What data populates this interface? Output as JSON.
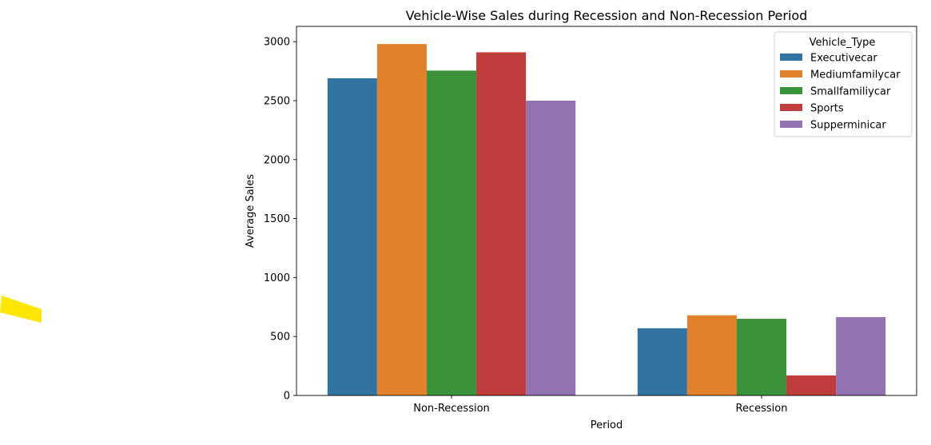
{
  "chart_data": {
    "type": "bar",
    "title": "Vehicle-Wise Sales during Recession and Non-Recession Period",
    "xlabel": "Period",
    "ylabel": "Average Sales",
    "categories": [
      "Non-Recession",
      "Recession"
    ],
    "ylim": [
      0,
      3130
    ],
    "yticks": [
      0,
      500,
      1000,
      1500,
      2000,
      2500,
      3000
    ],
    "grid": false,
    "legend": {
      "title": "Vehicle_Type",
      "placement": "top-right"
    },
    "series": [
      {
        "name": "Executivecar",
        "color": "#3274a1",
        "values": [
          2690,
          570
        ]
      },
      {
        "name": "Mediumfamilycar",
        "color": "#e1812c",
        "values": [
          2980,
          680
        ]
      },
      {
        "name": "Smallfamiliycar",
        "color": "#3a923a",
        "values": [
          2755,
          650
        ]
      },
      {
        "name": "Sports",
        "color": "#c03d3e",
        "values": [
          2910,
          170
        ]
      },
      {
        "name": "Supperminicar",
        "color": "#9372b2",
        "values": [
          2500,
          665
        ]
      }
    ]
  },
  "decoration": {
    "yellow_mark_color": "#ffe600"
  }
}
